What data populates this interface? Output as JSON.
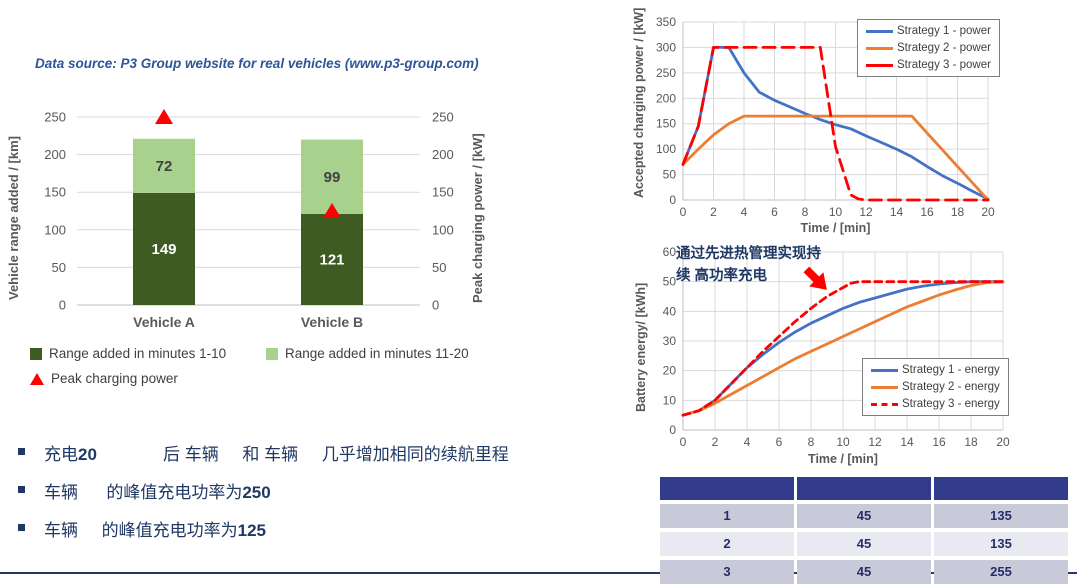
{
  "page": {
    "datasource_note": "Data source: P3 Group website for real vehicles (www.p3-group.com)"
  },
  "colors": {
    "blue": "#4472C4",
    "orange": "#ED7D31",
    "red": "#FF0000",
    "dark_green": "#3E5C22",
    "light_green": "#A9D18E",
    "grid": "#D9D9D9",
    "axis_line": "#BFBFBF",
    "axis_text": "#595959",
    "value_text": "#404040",
    "navy_text": "#1F3864",
    "table_header_bg": "#333B8C",
    "table_row_odd": "#C9CAD9",
    "table_row_even": "#E9E9F2",
    "separator": "#2A3563"
  },
  "chart_data": [
    {
      "id": "range-bar",
      "type": "bar",
      "stacked": true,
      "categories": [
        "Vehicle A",
        "Vehicle B"
      ],
      "series": [
        {
          "name": "Range added in minutes 1-10",
          "color": "dark_green",
          "values": [
            149,
            121
          ]
        },
        {
          "name": "Range added in minutes 11-20",
          "color": "light_green",
          "values": [
            72,
            99
          ]
        },
        {
          "name": "Peak charging power",
          "color": "red",
          "marker": "triangle",
          "values": [
            250,
            125
          ]
        }
      ],
      "ylabel_left": "Vehicle range added / [km]",
      "ylabel_right": "Peak charging power / [kW]",
      "ylim": [
        0,
        250
      ],
      "yticks": [
        0,
        50,
        100,
        150,
        200,
        250
      ],
      "grid": true,
      "legend_position": "bottom"
    },
    {
      "id": "power-line",
      "type": "line",
      "xlabel": "Time / [min]",
      "ylabel": "Accepted charging power / [kW]",
      "xlim": [
        0,
        20
      ],
      "ylim": [
        0,
        350
      ],
      "xticks": [
        0,
        2,
        4,
        6,
        8,
        10,
        12,
        14,
        16,
        18,
        20
      ],
      "yticks": [
        0,
        50,
        100,
        150,
        200,
        250,
        300,
        350
      ],
      "grid": true,
      "legend_position": "top-right",
      "series": [
        {
          "name": "Strategy 1 - power",
          "color": "blue",
          "dash": "",
          "x": [
            0,
            1,
            2,
            3,
            4,
            5,
            6,
            7,
            8,
            9,
            10,
            11,
            12,
            13,
            14,
            15,
            16,
            17,
            18,
            19,
            20
          ],
          "y": [
            70,
            145,
            300,
            300,
            250,
            212,
            196,
            183,
            170,
            158,
            148,
            140,
            126,
            113,
            100,
            85,
            66,
            48,
            33,
            17,
            2
          ]
        },
        {
          "name": "Strategy 2 - power",
          "color": "orange",
          "dash": "",
          "x": [
            0,
            1,
            2,
            3,
            4,
            5,
            6,
            7,
            8,
            9,
            10,
            11,
            12,
            13,
            14,
            15,
            16,
            17,
            18,
            19,
            20
          ],
          "y": [
            70,
            100,
            128,
            150,
            165,
            165,
            165,
            165,
            165,
            165,
            165,
            165,
            165,
            165,
            165,
            165,
            132,
            99,
            66,
            33,
            0
          ]
        },
        {
          "name": "Strategy 3 - power",
          "color": "red",
          "dash": "12 7",
          "x": [
            0,
            1,
            2,
            9,
            10,
            11,
            11.5,
            12,
            20
          ],
          "y": [
            70,
            145,
            300,
            300,
            105,
            10,
            2,
            0,
            0
          ]
        }
      ]
    },
    {
      "id": "energy-line",
      "type": "line",
      "xlabel": "Time / [min]",
      "ylabel": "Battery energy/ [kWh]",
      "annotation": "通过先进热管理实现持\n续 高功率充电",
      "xlim": [
        0,
        20
      ],
      "ylim": [
        0,
        60
      ],
      "xticks": [
        0,
        2,
        4,
        6,
        8,
        10,
        12,
        14,
        16,
        18,
        20
      ],
      "yticks": [
        0,
        10,
        20,
        30,
        40,
        50,
        60
      ],
      "grid": true,
      "legend_position": "bottom-right",
      "series": [
        {
          "name": "Strategy 1 - energy",
          "color": "blue",
          "dash": "",
          "x": [
            0,
            1,
            2,
            3,
            4,
            5,
            6,
            7,
            8,
            9,
            10,
            11,
            12,
            13,
            14,
            15,
            16,
            17,
            18,
            19,
            20
          ],
          "y": [
            5,
            6.5,
            10,
            15.5,
            21,
            25.5,
            29.5,
            33,
            36,
            38.5,
            41,
            43,
            44.5,
            46,
            47.5,
            48.5,
            49.2,
            49.7,
            50,
            50,
            50
          ]
        },
        {
          "name": "Strategy 2 - energy",
          "color": "orange",
          "dash": "",
          "x": [
            0,
            1,
            2,
            3,
            4,
            5,
            6,
            7,
            8,
            9,
            10,
            11,
            12,
            13,
            14,
            15,
            16,
            17,
            18,
            19,
            20
          ],
          "y": [
            5,
            6.5,
            9,
            12,
            15,
            18,
            21,
            24,
            26.5,
            29,
            31.5,
            34,
            36.5,
            39,
            41.5,
            43.5,
            45.5,
            47.2,
            48.7,
            49.7,
            50
          ]
        },
        {
          "name": "Strategy 3 - energy",
          "color": "red",
          "dash": "7 5",
          "x": [
            0,
            1,
            2,
            3,
            4,
            5,
            6,
            7,
            8,
            9,
            10,
            10.5,
            11,
            12,
            20
          ],
          "y": [
            5,
            6.5,
            10,
            15.5,
            21,
            26.5,
            31.5,
            36.5,
            41,
            45,
            48,
            49.5,
            50,
            50,
            50
          ]
        }
      ]
    }
  ],
  "bullets": [
    {
      "pre": "充电",
      "num": "20",
      "post": "              后 车辆     和 车辆     几乎增加相同的续航里程"
    },
    {
      "pre": "车辆      的峰值充电功率为",
      "num": "250",
      "post": ""
    },
    {
      "pre": "车辆     的峰值充电功率为",
      "num": "125",
      "post": ""
    }
  ],
  "table": {
    "headers": [
      "",
      "",
      ""
    ],
    "rows": [
      [
        "1",
        "45",
        "135"
      ],
      [
        "2",
        "45",
        "135"
      ],
      [
        "3",
        "45",
        "255"
      ]
    ]
  }
}
